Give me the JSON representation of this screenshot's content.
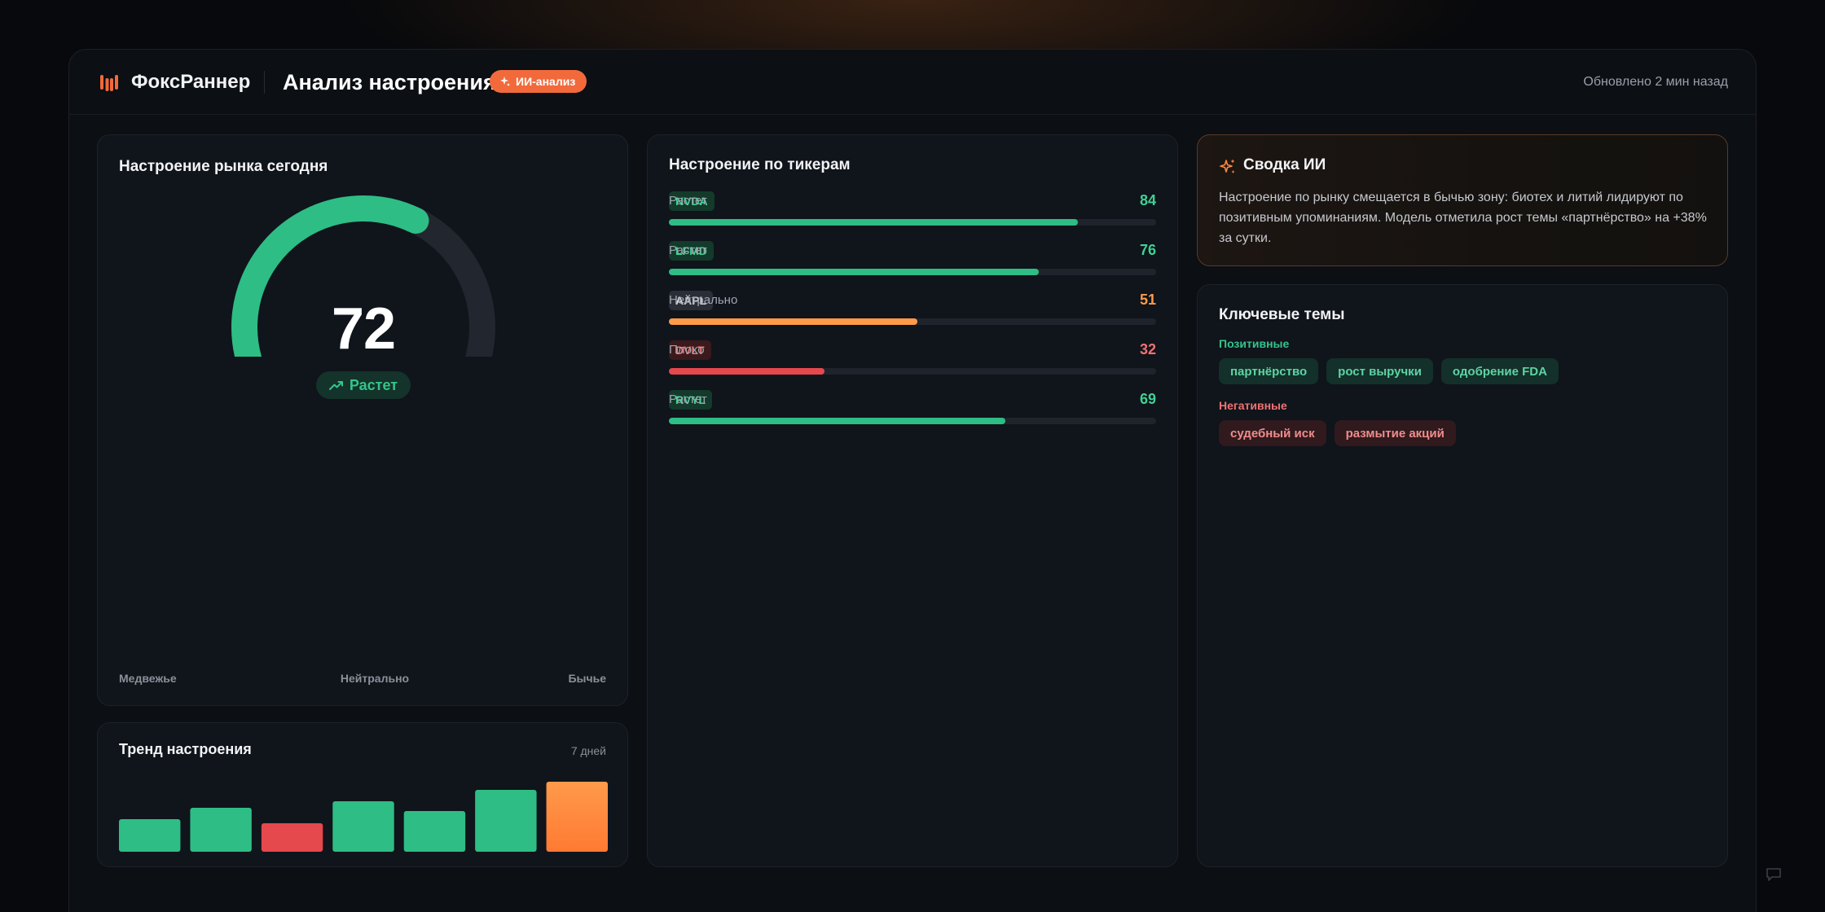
{
  "header": {
    "brand": "ФоксРаннер",
    "page_title": "Анализ настроения",
    "ai_badge": "ИИ-анализ",
    "updated": "Обновлено 2 мин назад"
  },
  "gauge": {
    "title": "Настроение рынка сегодня",
    "value": "72",
    "value_fraction": 0.72,
    "trend_label": "Растет",
    "scale": {
      "bear": "Медвежье",
      "neutral": "Нейтрально",
      "bull": "Бычье"
    }
  },
  "trend": {
    "title": "Тренд настроения",
    "range": "7 дней"
  },
  "chart_data": {
    "type": "bar",
    "values": [
      40,
      54,
      35,
      62,
      50,
      76,
      86
    ],
    "colors": [
      "#2ebd85",
      "#2ebd85",
      "#e5484d",
      "#2ebd85",
      "#2ebd85",
      "#2ebd85",
      "#ff8a3d"
    ],
    "ylim": [
      0,
      100
    ]
  },
  "tickers": {
    "title": "Настроение по тикерам",
    "items": [
      {
        "symbol": "NVDA",
        "status": "Растет",
        "score": "84",
        "value": 84,
        "kind": "pos"
      },
      {
        "symbol": "LFMD",
        "status": "Растет",
        "score": "76",
        "value": 76,
        "kind": "pos"
      },
      {
        "symbol": "AAPL",
        "status": "Нейтрально",
        "score": "51",
        "value": 51,
        "kind": "neu"
      },
      {
        "symbol": "DVLT",
        "status": "Плохо",
        "score": "32",
        "value": 32,
        "kind": "neg"
      },
      {
        "symbol": "RVYL",
        "status": "Растет",
        "score": "69",
        "value": 69,
        "kind": "pos"
      }
    ]
  },
  "ai_summary": {
    "title": "Сводка ИИ",
    "text": "Настроение по рынку смещается в бычью зону: биотех и литий лидируют по позитивным упоминаниям. Модель отметила рост темы «партнёрство» на +38% за сутки."
  },
  "themes": {
    "title": "Ключевые темы",
    "positive_label": "Позитивные",
    "positive": [
      "партнёрство",
      "рост выручки",
      "одобрение FDA"
    ],
    "negative_label": "Негативные",
    "negative": [
      "судебный иск",
      "размытие акций"
    ]
  },
  "colors": {
    "positive": "#2ebd85",
    "neutral": "#ff9a4a",
    "negative": "#e5484d",
    "accent": "#f26a3b"
  },
  "icons": {
    "logo": "foxrunner-logo-icon",
    "ai": "sparkle-icon",
    "trend": "trending-up-icon",
    "corner": "chat-bubble-icon"
  }
}
